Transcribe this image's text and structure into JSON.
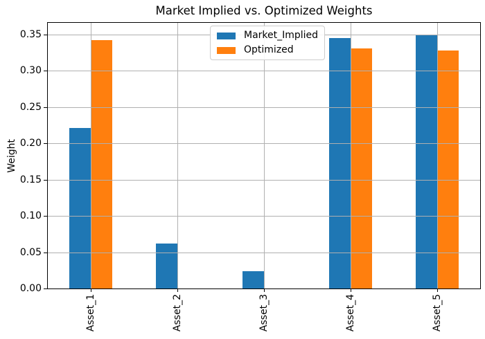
{
  "chart_data": {
    "type": "bar",
    "title": "Market Implied vs. Optimized Weights",
    "xlabel": "",
    "ylabel": "Weight",
    "categories": [
      "Asset_1",
      "Asset_2",
      "Asset_3",
      "Asset_4",
      "Asset_5"
    ],
    "series": [
      {
        "name": "Market_Implied",
        "color": "#1f77b4",
        "values": [
          0.221,
          0.062,
          0.024,
          0.345,
          0.349
        ]
      },
      {
        "name": "Optimized",
        "color": "#ff7f0e",
        "values": [
          0.342,
          0.0,
          0.0,
          0.331,
          0.328
        ]
      }
    ],
    "ylim": [
      0,
      0.3662
    ],
    "ytick_labels": [
      "0.00",
      "0.05",
      "0.10",
      "0.15",
      "0.20",
      "0.25",
      "0.30",
      "0.35"
    ],
    "grid": true,
    "grid_on_top": true,
    "x_tick_rotation": 90,
    "legend_position": "upper-center",
    "colors": {
      "grid": "#b0b0b0",
      "spine": "#000000",
      "text": "#000000",
      "background": "#ffffff"
    }
  }
}
